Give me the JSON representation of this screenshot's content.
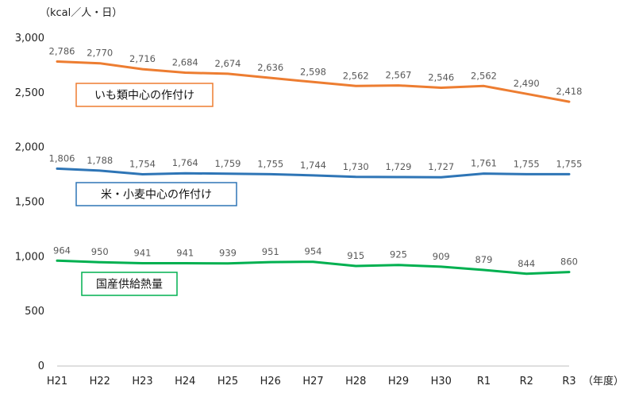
{
  "chart_data": {
    "type": "line",
    "ylabel": "（kcal／人・日）",
    "xunit": "（年度）",
    "categories": [
      "H21",
      "H22",
      "H23",
      "H24",
      "H25",
      "H26",
      "H27",
      "H28",
      "H29",
      "H30",
      "R1",
      "R2",
      "R3"
    ],
    "ylim": [
      0,
      3000
    ],
    "yticks": [
      0,
      500,
      1000,
      1500,
      2000,
      2500,
      3000
    ],
    "ytick_labels": [
      "0",
      "500",
      "1,000",
      "1,500",
      "2,000",
      "2,500",
      "3,000"
    ],
    "grid": false,
    "series": [
      {
        "name": "いも類中心の作付け",
        "color": "#ED7D31",
        "values": [
          2786,
          2770,
          2716,
          2684,
          2674,
          2636,
          2598,
          2562,
          2567,
          2546,
          2562,
          2490,
          2418
        ],
        "labels": [
          "2,786",
          "2,770",
          "2,716",
          "2,684",
          "2,674",
          "2,636",
          "2,598",
          "2,562",
          "2,567",
          "2,546",
          "2,562",
          "2,490",
          "2,418"
        ]
      },
      {
        "name": "米・小麦中心の作付け",
        "color": "#2E75B6",
        "values": [
          1806,
          1788,
          1754,
          1764,
          1759,
          1755,
          1744,
          1730,
          1729,
          1727,
          1761,
          1755,
          1755
        ],
        "labels": [
          "1,806",
          "1,788",
          "1,754",
          "1,764",
          "1,759",
          "1,755",
          "1,744",
          "1,730",
          "1,729",
          "1,727",
          "1,761",
          "1,755",
          "1,755"
        ]
      },
      {
        "name": "国産供給熱量",
        "color": "#00B050",
        "values": [
          964,
          950,
          941,
          941,
          939,
          951,
          954,
          915,
          925,
          909,
          879,
          844,
          860
        ],
        "labels": [
          "964",
          "950",
          "941",
          "941",
          "939",
          "951",
          "954",
          "915",
          "925",
          "909",
          "879",
          "844",
          "860"
        ]
      }
    ]
  }
}
